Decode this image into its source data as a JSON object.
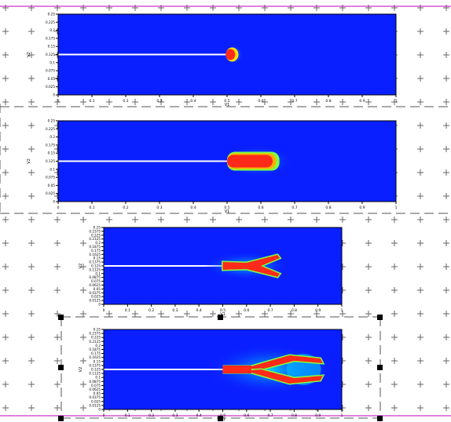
{
  "colors": {
    "field_blue": "#0a1fff",
    "crack_red": "#ff2a1a",
    "guide_magenta": "#c000c0",
    "grid_mark": "#666666",
    "axis": "#000000"
  },
  "icons": {
    "grid_mark": "plus-icon",
    "selection_handle": "square-handle-icon"
  },
  "plots": [
    {
      "title": "",
      "xlabel": "V1",
      "ylabel": "V2",
      "xticks": [
        "0",
        "0.1",
        "0.2",
        "0.3",
        "0.4",
        "0.5",
        "0.6",
        "0.7",
        "0.8",
        "0.9",
        "1"
      ],
      "yticks": [
        "0",
        "0.025",
        "0.05",
        "0.075",
        "0.1",
        "0.125",
        "0.15",
        "0.175",
        "0.2",
        "0.225",
        "0.25"
      ]
    },
    {
      "title": "",
      "xlabel": "V1",
      "ylabel": "V2",
      "xticks": [
        "0",
        "0.1",
        "0.2",
        "0.3",
        "0.4",
        "0.5",
        "0.6",
        "0.7",
        "0.8",
        "0.9",
        "1"
      ],
      "yticks": [
        "0",
        "0.025",
        "0.05",
        "0.075",
        "0.1",
        "0.125",
        "0.15",
        "0.175",
        "0.2",
        "0.225",
        "0.25"
      ]
    },
    {
      "title": "",
      "xlabel": "V1",
      "ylabel": "V2",
      "xticks": [
        "0",
        "0.1",
        "0.2",
        "0.3",
        "0.4",
        "0.5",
        "0.6",
        "0.7",
        "0.8",
        "0.9",
        "1"
      ],
      "yticks": [
        "0",
        "0.0125",
        "0.025",
        "0.0375",
        "0.05",
        "0.0625",
        "0.075",
        "0.0875",
        "0.1",
        "0.1125",
        "0.125",
        "0.1375",
        "0.15",
        "0.1625",
        "0.175",
        "0.1875",
        "0.2",
        "0.2125",
        "0.225",
        "0.2375",
        "0.25"
      ]
    },
    {
      "title": "",
      "xlabel": "V1",
      "ylabel": "V2",
      "xticks": [
        "0",
        "0.1",
        "0.2",
        "0.3",
        "0.4",
        "0.5",
        "0.6",
        "0.7",
        "0.8",
        "0.9",
        "1"
      ],
      "yticks": [
        "0",
        "0.0125",
        "0.025",
        "0.0375",
        "0.05",
        "0.0625",
        "0.075",
        "0.0875",
        "0.1",
        "0.1125",
        "0.125",
        "0.1375",
        "0.15",
        "0.1625",
        "0.175",
        "0.1875",
        "0.2",
        "0.2125",
        "0.225",
        "0.2375",
        "0.25"
      ]
    }
  ]
}
